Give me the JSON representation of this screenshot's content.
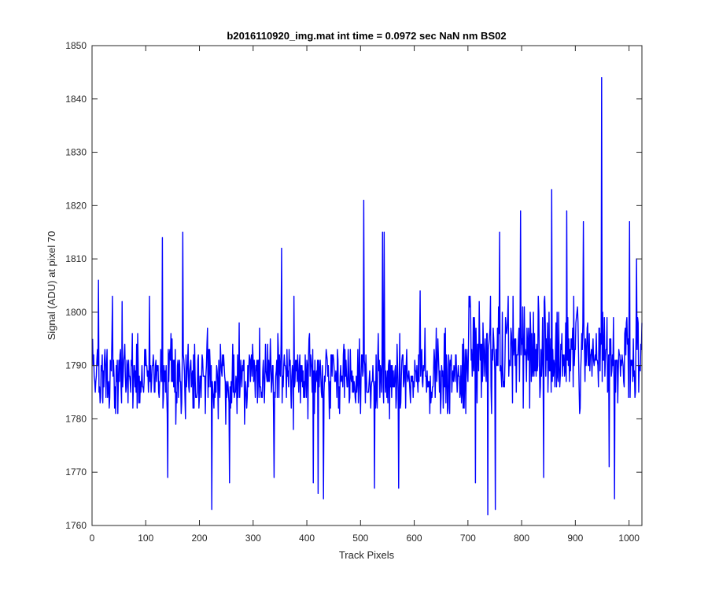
{
  "chart_data": {
    "type": "line",
    "title": "b2016110920_img.mat int time = 0.0972 sec  NaN nm BS02",
    "xlabel": "Track Pixels",
    "ylabel": "Signal (ADU) at pixel 70",
    "xlim": [
      0,
      1024
    ],
    "ylim": [
      1760,
      1850
    ],
    "xticks": [
      0,
      100,
      200,
      300,
      400,
      500,
      600,
      700,
      800,
      900,
      1000
    ],
    "yticks": [
      1760,
      1770,
      1780,
      1790,
      1800,
      1810,
      1820,
      1830,
      1840,
      1850
    ],
    "grid": false,
    "legend": "none",
    "line_color": "#0000ff",
    "noise": {
      "count": 1024,
      "seed": 20161109,
      "segments": [
        {
          "x0": 0,
          "x1": 700,
          "mean": 1788,
          "spread": 6.5
        },
        {
          "x0": 700,
          "x1": 1024,
          "mean": 1793,
          "spread": 8.5
        }
      ]
    },
    "points": [
      {
        "x": 11,
        "y": 1806
      },
      {
        "x": 37,
        "y": 1803
      },
      {
        "x": 55,
        "y": 1802
      },
      {
        "x": 106,
        "y": 1803
      },
      {
        "x": 130,
        "y": 1814
      },
      {
        "x": 140,
        "y": 1769
      },
      {
        "x": 168,
        "y": 1815
      },
      {
        "x": 222,
        "y": 1763
      },
      {
        "x": 255,
        "y": 1768
      },
      {
        "x": 338,
        "y": 1769
      },
      {
        "x": 352,
        "y": 1812
      },
      {
        "x": 375,
        "y": 1803
      },
      {
        "x": 411,
        "y": 1768
      },
      {
        "x": 420,
        "y": 1766
      },
      {
        "x": 430,
        "y": 1765
      },
      {
        "x": 505,
        "y": 1821
      },
      {
        "x": 525,
        "y": 1767
      },
      {
        "x": 540,
        "y": 1815
      },
      {
        "x": 543,
        "y": 1815
      },
      {
        "x": 570,
        "y": 1767
      },
      {
        "x": 610,
        "y": 1804
      },
      {
        "x": 713,
        "y": 1768
      },
      {
        "x": 736,
        "y": 1762
      },
      {
        "x": 750,
        "y": 1763
      },
      {
        "x": 758,
        "y": 1815
      },
      {
        "x": 783,
        "y": 1803
      },
      {
        "x": 797,
        "y": 1819
      },
      {
        "x": 840,
        "y": 1769
      },
      {
        "x": 855,
        "y": 1823
      },
      {
        "x": 883,
        "y": 1819
      },
      {
        "x": 914,
        "y": 1817
      },
      {
        "x": 948,
        "y": 1844
      },
      {
        "x": 962,
        "y": 1771
      },
      {
        "x": 972,
        "y": 1765
      },
      {
        "x": 1000,
        "y": 1817
      },
      {
        "x": 1013,
        "y": 1810
      }
    ]
  }
}
